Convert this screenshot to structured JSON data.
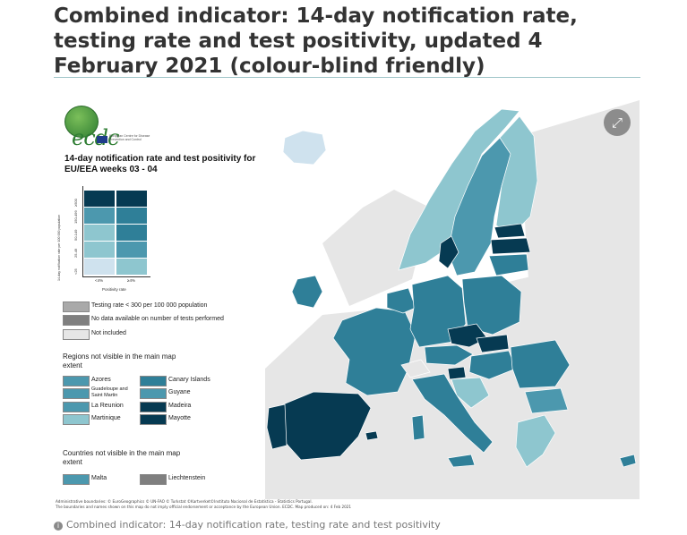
{
  "title": "Combined indicator: 14-day notification rate, testing rate and test positivity, updated 4 February 2021 (colour-blind friendly)",
  "expand_icon": "expand-arrows-icon",
  "expand_glyph": "⤢",
  "colors": {
    "very_light": "#cfe2ee",
    "light": "#8ec6cf",
    "mid": "#4c98ae",
    "dark": "#2f7f98",
    "darkest": "#063a52",
    "grey_testing": "#a9a9a9",
    "no_data": "#7f7f7f",
    "not_included": "#e6e6e6",
    "background": "#e6e6e6",
    "sea": "#ffffff"
  },
  "legend": {
    "logo_text": "ecdc",
    "logo_small": "European Centre for Disease Prevention and Control",
    "title": "14-day notification rate and test positivity for EU/EEA weeks 03 - 04",
    "y_axis_label": "14-day notification rate per 100 000 population",
    "y_ticks": [
      "≥500",
      "150-499",
      "50-149",
      "25-49",
      "<25"
    ],
    "x_ticks": [
      "<4%",
      "≥4%"
    ],
    "x_axis_label": "Positivity rate",
    "grey_items": [
      {
        "label": "Testing rate < 300 per 100 000 population",
        "color": "#a9a9a9"
      },
      {
        "label": "No data available on number of tests performed",
        "color": "#7f7f7f"
      },
      {
        "label": "Not included",
        "color": "#e6e6e6"
      }
    ],
    "regions_title": "Regions not visible in the main map extent",
    "regions": [
      {
        "label": "Azores",
        "color": "#4c98ae"
      },
      {
        "label": "Guadeloupe and Saint Martin",
        "color": "#4c98ae"
      },
      {
        "label": "La Reunion",
        "color": "#4c98ae"
      },
      {
        "label": "Martinique",
        "color": "#8ec6cf"
      },
      {
        "label": "Canary Islands",
        "color": "#2f7f98"
      },
      {
        "label": "Guyane",
        "color": "#4c98ae"
      },
      {
        "label": "Madeira",
        "color": "#063a52"
      },
      {
        "label": "Mayotte",
        "color": "#063a52"
      }
    ],
    "countries_title": "Countries not visible in the main map extent",
    "countries": [
      {
        "label": "Malta",
        "color": "#4c98ae"
      },
      {
        "label": "Liechtenstein",
        "color": "#7f7f7f"
      }
    ]
  },
  "credits": [
    "Administrative boundaries: © EuroGeographics © UN-FAO © Turkstat ©Kartverket©Instituto Nacional de Estatística - Statistics Portugal.",
    "The boundaries and names shown on this map do not imply official endorsement or acceptance by the European Union. ECDC. Map produced on: 4 Feb 2021"
  ],
  "caption": "Combined indicator: 14-day notification rate, testing rate and test positivity",
  "caption_icon": "info-icon",
  "caption_icon_glyph": "i"
}
